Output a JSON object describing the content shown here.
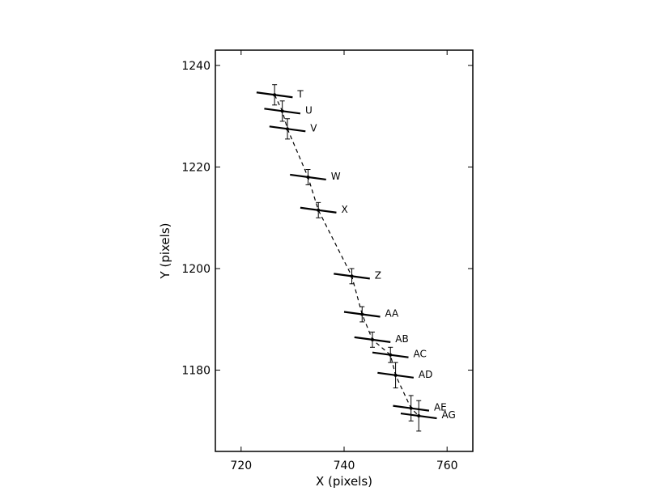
{
  "chart_data": {
    "type": "scatter",
    "title": "",
    "xlabel": "X (pixels)",
    "ylabel": "Y (pixels)",
    "xlim": [
      715,
      765
    ],
    "ylim": [
      1164,
      1243
    ],
    "xticks": [
      720,
      740,
      760
    ],
    "yticks": [
      1180,
      1200,
      1220,
      1240
    ],
    "grid": false,
    "legend": "none",
    "line_style": "dashed",
    "colors": {
      "marks": "#000000",
      "frame": "#000000"
    },
    "points": [
      {
        "label": "T",
        "x": 726.5,
        "y": 1234.2,
        "xerr": 3.5,
        "yerr": 2.0
      },
      {
        "label": "U",
        "x": 728.0,
        "y": 1231.0,
        "xerr": 3.5,
        "yerr": 2.0
      },
      {
        "label": "V",
        "x": 729.0,
        "y": 1227.5,
        "xerr": 3.5,
        "yerr": 2.0
      },
      {
        "label": "W",
        "x": 733.0,
        "y": 1218.0,
        "xerr": 3.5,
        "yerr": 1.5
      },
      {
        "label": "X",
        "x": 735.0,
        "y": 1211.5,
        "xerr": 3.5,
        "yerr": 1.5
      },
      {
        "label": "Z",
        "x": 741.5,
        "y": 1198.5,
        "xerr": 3.5,
        "yerr": 1.5
      },
      {
        "label": "AA",
        "x": 743.5,
        "y": 1191.0,
        "xerr": 3.5,
        "yerr": 1.5
      },
      {
        "label": "AB",
        "x": 745.5,
        "y": 1186.0,
        "xerr": 3.5,
        "yerr": 1.5
      },
      {
        "label": "AC",
        "x": 749.0,
        "y": 1183.0,
        "xerr": 3.5,
        "yerr": 1.5
      },
      {
        "label": "AD",
        "x": 750.0,
        "y": 1179.0,
        "xerr": 3.5,
        "yerr": 2.5
      },
      {
        "label": "AE",
        "x": 753.0,
        "y": 1172.5,
        "xerr": 3.5,
        "yerr": 2.5
      },
      {
        "label": "AG",
        "x": 754.5,
        "y": 1171.0,
        "xerr": 3.5,
        "yerr": 3.0
      }
    ]
  }
}
